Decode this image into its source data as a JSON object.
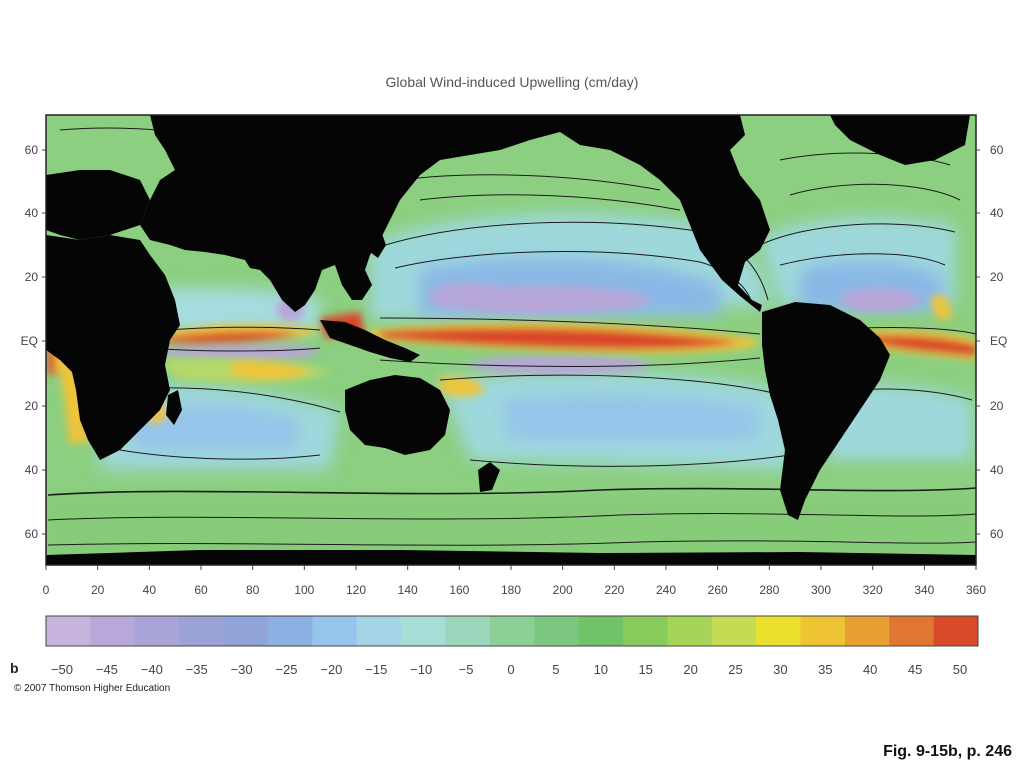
{
  "title": "Global Wind-induced Upwelling (cm/day)",
  "panel_letter": "b",
  "copyright": "© 2007 Thomson Higher Education",
  "figure_ref": "Fig. 9-15b, p. 246",
  "map": {
    "y_ticks": [
      "60",
      "40",
      "20",
      "EQ",
      "20",
      "40",
      "60"
    ],
    "x_ticks": [
      "0",
      "20",
      "40",
      "60",
      "80",
      "100",
      "120",
      "140",
      "160",
      "180",
      "200",
      "220",
      "240",
      "260",
      "280",
      "300",
      "320",
      "340",
      "360"
    ],
    "colors": {
      "land": "#050505",
      "ocean_base": "#8ccf80",
      "subtropical": "#9ed8dc",
      "gyre_center": "#8ab8e6",
      "deep_negative": "#b7a6d8",
      "upwelling_high": "#d9452c",
      "upwelling_mid": "#eec43a",
      "upwelling_low": "#b5d86a",
      "contour": "#1b1b1b"
    }
  },
  "colorbar": {
    "labels": [
      "−50",
      "−45",
      "−40",
      "−35",
      "−30",
      "−25",
      "−20",
      "−15",
      "−10",
      "−5",
      "0",
      "5",
      "10",
      "15",
      "20",
      "25",
      "30",
      "35",
      "40",
      "45",
      "50"
    ],
    "colors": [
      "#c7b4dc",
      "#b8a8da",
      "#a8a4d8",
      "#9aa2d6",
      "#90a4da",
      "#8cb0e2",
      "#96c4ea",
      "#a4d4e6",
      "#a8dcd6",
      "#9cd6bc",
      "#8cd098",
      "#7cc880",
      "#72c268",
      "#88ca5c",
      "#a4d458",
      "#c4dc54",
      "#eae02c",
      "#eec434",
      "#e8a032",
      "#e07632",
      "#d84a28"
    ]
  }
}
